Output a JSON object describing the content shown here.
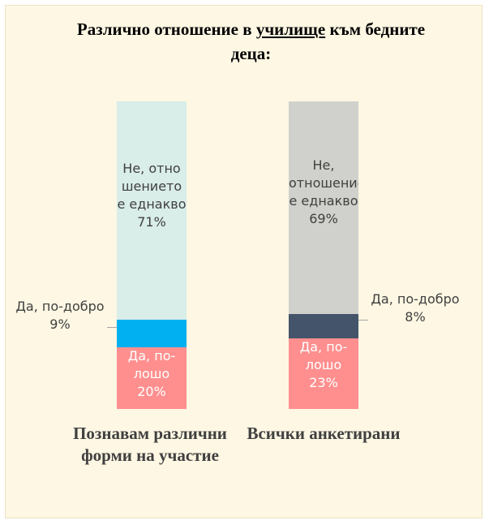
{
  "chart_data": {
    "type": "bar",
    "stacked": true,
    "title": [
      "Различно отношение в ",
      "училище",
      " към бедните деца:"
    ],
    "categories": [
      "Познавам различни форми на участие",
      "Всички анкетирани"
    ],
    "ylim": [
      0,
      100
    ],
    "series": [
      {
        "name": "Да, по-лошо",
        "colors": [
          "#ff8f8f",
          "#ff8f8f"
        ],
        "values": [
          20,
          23
        ],
        "value_labels": [
          "20%",
          "23%"
        ]
      },
      {
        "name": "Да, по-добро",
        "colors": [
          "#00b0f0",
          "#44546a"
        ],
        "values": [
          9,
          8
        ],
        "value_labels": [
          "9%",
          "8%"
        ]
      },
      {
        "name": "Не, отношението е еднакво",
        "colors": [
          "#d9ede9",
          "#d0d0cc"
        ],
        "values": [
          71,
          69
        ],
        "value_labels": [
          "71%",
          "69%"
        ]
      }
    ]
  }
}
